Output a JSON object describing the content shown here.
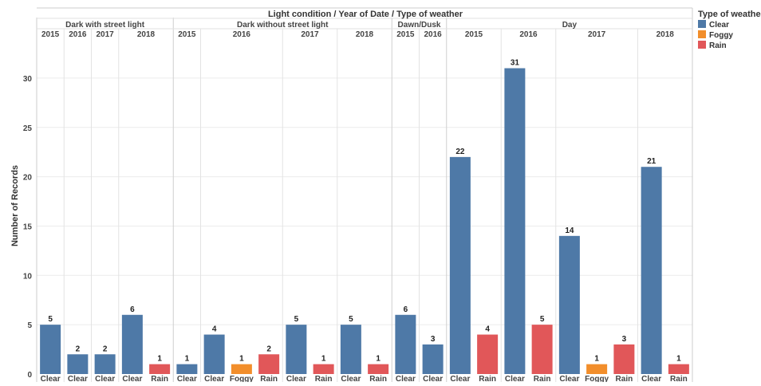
{
  "chart_data": {
    "type": "bar",
    "title": "Light condition  /  Year of Date  /  Type of weather",
    "ylabel": "Number of Records",
    "ylim": [
      0,
      34
    ],
    "yticks": [
      0,
      5,
      10,
      15,
      20,
      25,
      30
    ],
    "grid": true,
    "legend": {
      "title": "Type of weathe",
      "position": "right",
      "items": [
        {
          "label": "Clear",
          "color": "#4e79a7"
        },
        {
          "label": "Foggy",
          "color": "#f28e2b"
        },
        {
          "label": "Rain",
          "color": "#e15759"
        }
      ]
    },
    "groups": [
      {
        "light": "Dark with street light",
        "years": [
          {
            "year": "2015",
            "bars": [
              {
                "weather": "Clear",
                "value": 5
              }
            ]
          },
          {
            "year": "2016",
            "bars": [
              {
                "weather": "Clear",
                "value": 2
              }
            ]
          },
          {
            "year": "2017",
            "bars": [
              {
                "weather": "Clear",
                "value": 2
              }
            ]
          },
          {
            "year": "2018",
            "bars": [
              {
                "weather": "Clear",
                "value": 6
              },
              {
                "weather": "Rain",
                "value": 1
              }
            ]
          }
        ]
      },
      {
        "light": "Dark without street light",
        "years": [
          {
            "year": "2015",
            "bars": [
              {
                "weather": "Clear",
                "value": 1
              }
            ]
          },
          {
            "year": "2016",
            "bars": [
              {
                "weather": "Clear",
                "value": 4
              },
              {
                "weather": "Foggy",
                "value": 1
              },
              {
                "weather": "Rain",
                "value": 2
              }
            ]
          },
          {
            "year": "2017",
            "bars": [
              {
                "weather": "Clear",
                "value": 5
              },
              {
                "weather": "Rain",
                "value": 1
              }
            ]
          },
          {
            "year": "2018",
            "bars": [
              {
                "weather": "Clear",
                "value": 5
              },
              {
                "weather": "Rain",
                "value": 1
              }
            ]
          }
        ]
      },
      {
        "light": "Dawn/Dusk",
        "years": [
          {
            "year": "2015",
            "bars": [
              {
                "weather": "Clear",
                "value": 6
              }
            ]
          },
          {
            "year": "2016",
            "bars": [
              {
                "weather": "Clear",
                "value": 3
              }
            ]
          }
        ]
      },
      {
        "light": "Day",
        "years": [
          {
            "year": "2015",
            "bars": [
              {
                "weather": "Clear",
                "value": 22
              },
              {
                "weather": "Rain",
                "value": 4
              }
            ]
          },
          {
            "year": "2016",
            "bars": [
              {
                "weather": "Clear",
                "value": 31
              },
              {
                "weather": "Rain",
                "value": 5
              }
            ]
          },
          {
            "year": "2017",
            "bars": [
              {
                "weather": "Clear",
                "value": 14
              },
              {
                "weather": "Foggy",
                "value": 1
              },
              {
                "weather": "Rain",
                "value": 3
              }
            ]
          },
          {
            "year": "2018",
            "bars": [
              {
                "weather": "Clear",
                "value": 21
              },
              {
                "weather": "Rain",
                "value": 1
              }
            ]
          }
        ]
      }
    ]
  }
}
